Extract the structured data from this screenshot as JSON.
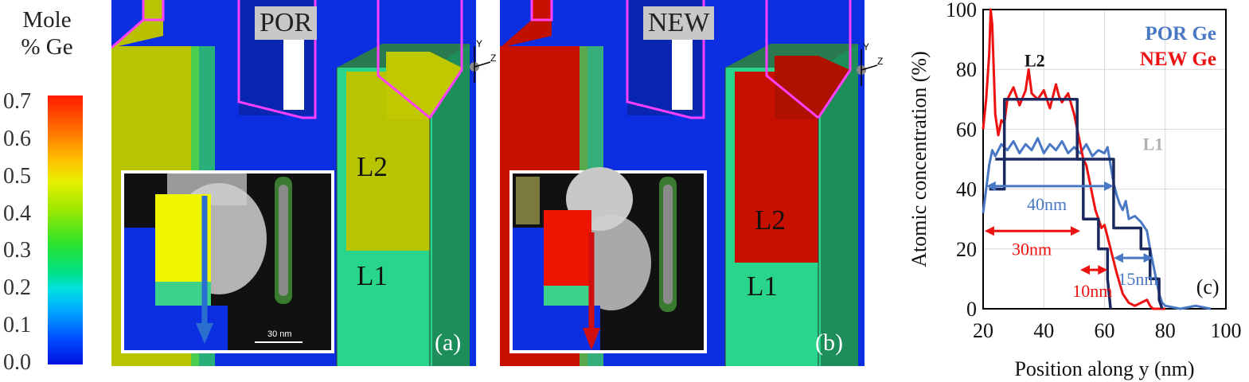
{
  "colorbar": {
    "title_line1": "Mole",
    "title_line2": "% Ge",
    "ticks": [
      "0.7",
      "0.6",
      "0.5",
      "0.4",
      "0.3",
      "0.2",
      "0.1",
      "0.0"
    ]
  },
  "panel_a": {
    "tag": "POR",
    "l2": "L2",
    "l1": "L1",
    "letter": "(a)",
    "scale_bar": "30 nm",
    "arrow_color": "#2a6fd0"
  },
  "panel_b": {
    "tag": "NEW",
    "l2": "L2",
    "l1": "L1",
    "letter": "(b)",
    "arrow_color": "#d01010"
  },
  "axes_triad": {
    "y": "Y",
    "z": "Z"
  },
  "chart_data": {
    "type": "line",
    "xlabel": "Position along y (nm)",
    "ylabel": "Atomic concentration (%)",
    "xlim": [
      20,
      100
    ],
    "ylim": [
      0,
      100
    ],
    "xticks": [
      "20",
      "40",
      "60",
      "80",
      "100"
    ],
    "yticks": [
      "0",
      "20",
      "40",
      "60",
      "80",
      "100"
    ],
    "grid": true,
    "panel_letter": "(c)",
    "legend": [
      {
        "name": "POR Ge",
        "color": "#4a78c4"
      },
      {
        "name": "NEW Ge",
        "color": "#ee1111"
      }
    ],
    "annotations": [
      {
        "text": "L2",
        "color": "#111111"
      },
      {
        "text": "L1",
        "color": "#b0b0b0"
      },
      {
        "text": "40nm",
        "color": "#4a78c4"
      },
      {
        "text": "30nm",
        "color": "#ee1111"
      },
      {
        "text": "10nm",
        "color": "#ee1111"
      },
      {
        "text": "15nm",
        "color": "#4a78c4"
      }
    ],
    "series": [
      {
        "name": "POR Ge",
        "color": "#4a78c4",
        "x": [
          20,
          21,
          22,
          23,
          24,
          26,
          28,
          30,
          32,
          34,
          36,
          38,
          40,
          42,
          44,
          46,
          48,
          50,
          52,
          54,
          56,
          58,
          60,
          61,
          62,
          63,
          64,
          65,
          66,
          67,
          68,
          70,
          72,
          74,
          75,
          76,
          77,
          78,
          79,
          80,
          85,
          90,
          95
        ],
        "y": [
          32,
          40,
          48,
          53,
          51,
          55,
          53,
          56,
          52,
          55,
          53,
          57,
          52,
          55,
          53,
          56,
          52,
          54,
          52,
          55,
          51,
          53,
          52,
          54,
          48,
          42,
          38,
          35,
          33,
          36,
          30,
          31,
          29,
          26,
          20,
          15,
          10,
          5,
          2,
          1,
          0,
          1,
          0
        ]
      },
      {
        "name": "NEW Ge",
        "color": "#ee1111",
        "x": [
          20,
          21,
          22,
          22.5,
          23,
          23.5,
          24,
          25,
          26,
          27,
          28,
          30,
          32,
          34,
          35,
          36,
          38,
          40,
          42,
          44,
          45,
          46,
          48,
          50,
          51,
          52,
          53,
          54,
          55,
          56,
          57,
          58,
          59,
          60,
          61,
          62,
          64,
          66,
          68,
          70,
          72,
          74,
          75,
          76,
          78,
          80
        ],
        "y": [
          60,
          70,
          85,
          100,
          95,
          80,
          65,
          58,
          63,
          62,
          70,
          74,
          68,
          73,
          80,
          72,
          70,
          73,
          67,
          75,
          71,
          69,
          72,
          65,
          60,
          55,
          50,
          48,
          43,
          38,
          33,
          30,
          27,
          28,
          24,
          20,
          12,
          5,
          2,
          1,
          2,
          3,
          1,
          0,
          0,
          0
        ]
      },
      {
        "name": "L2",
        "color": "#1a2a60",
        "x": [
          24,
          27,
          27,
          51,
          51,
          53,
          53,
          58,
          58,
          61,
          61,
          62
        ],
        "y": [
          50,
          50,
          70,
          70,
          50,
          50,
          30,
          30,
          20,
          20,
          10,
          0
        ]
      },
      {
        "name": "L1",
        "color": "#1a2a60",
        "x": [
          22,
          27,
          27,
          63,
          63,
          72,
          72,
          75,
          75,
          78,
          78,
          79
        ],
        "y": [
          40,
          40,
          50,
          50,
          27,
          27,
          20,
          20,
          10,
          10,
          3,
          0
        ]
      }
    ]
  }
}
